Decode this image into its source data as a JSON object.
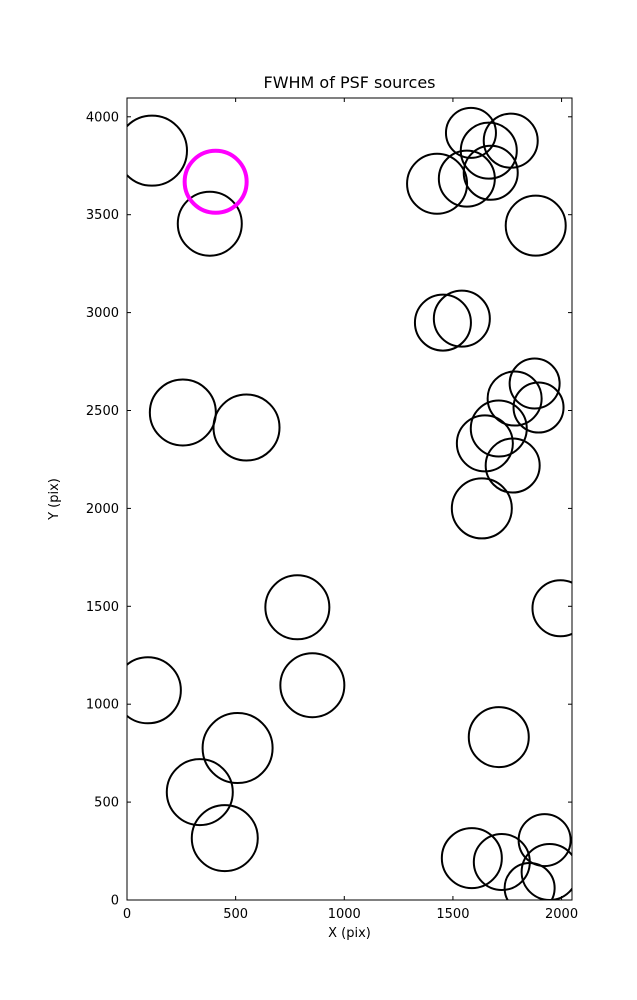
{
  "chart_data": {
    "type": "scatter",
    "title": "FWHM of PSF sources",
    "xlabel": "X (pix)",
    "ylabel": "Y (pix)",
    "xlim": [
      0,
      2048
    ],
    "ylim": [
      0,
      4096
    ],
    "xticks": [
      0,
      500,
      1000,
      1500,
      2000
    ],
    "yticks": [
      0,
      500,
      1000,
      1500,
      2000,
      2500,
      3000,
      3500,
      4000
    ],
    "grid": false,
    "legend": "none",
    "marker_style": "open-circle",
    "background_color": "#ffffff",
    "axes_color": "#000000",
    "series": [
      {
        "name": "psf-sources",
        "marker_name": "psf-source-marker",
        "color": "#000000",
        "linewidth": 2,
        "points": [
          {
            "x": 115,
            "y": 3827,
            "r": 35
          },
          {
            "x": 381,
            "y": 3454,
            "r": 32
          },
          {
            "x": 1583,
            "y": 3918,
            "r": 25
          },
          {
            "x": 1665,
            "y": 3827,
            "r": 28
          },
          {
            "x": 1766,
            "y": 3878,
            "r": 27
          },
          {
            "x": 1427,
            "y": 3658,
            "r": 30
          },
          {
            "x": 1564,
            "y": 3684,
            "r": 28
          },
          {
            "x": 1674,
            "y": 3714,
            "r": 27
          },
          {
            "x": 1881,
            "y": 3444,
            "r": 30
          },
          {
            "x": 1454,
            "y": 2949,
            "r": 28
          },
          {
            "x": 1541,
            "y": 2969,
            "r": 28
          },
          {
            "x": 1876,
            "y": 2638,
            "r": 25
          },
          {
            "x": 1784,
            "y": 2561,
            "r": 27
          },
          {
            "x": 1894,
            "y": 2515,
            "r": 25
          },
          {
            "x": 1711,
            "y": 2408,
            "r": 28
          },
          {
            "x": 1647,
            "y": 2332,
            "r": 28
          },
          {
            "x": 1775,
            "y": 2219,
            "r": 27
          },
          {
            "x": 1633,
            "y": 2000,
            "r": 30
          },
          {
            "x": 257,
            "y": 2490,
            "r": 33
          },
          {
            "x": 550,
            "y": 2413,
            "r": 33
          },
          {
            "x": 784,
            "y": 1495,
            "r": 32
          },
          {
            "x": 853,
            "y": 1097,
            "r": 32
          },
          {
            "x": 96,
            "y": 1071,
            "r": 33
          },
          {
            "x": 509,
            "y": 776,
            "r": 35
          },
          {
            "x": 335,
            "y": 551,
            "r": 33
          },
          {
            "x": 450,
            "y": 316,
            "r": 33
          },
          {
            "x": 1711,
            "y": 832,
            "r": 30
          },
          {
            "x": 1587,
            "y": 214,
            "r": 30
          },
          {
            "x": 1725,
            "y": 194,
            "r": 28
          },
          {
            "x": 1922,
            "y": 306,
            "r": 26
          },
          {
            "x": 1945,
            "y": 143,
            "r": 28
          },
          {
            "x": 1853,
            "y": 61,
            "r": 25
          },
          {
            "x": 1995,
            "y": 1490,
            "r": 28
          }
        ]
      },
      {
        "name": "highlighted-source",
        "marker_name": "highlighted-source-marker",
        "color": "#ff00ff",
        "linewidth": 4,
        "points": [
          {
            "x": 408,
            "y": 3668,
            "r": 31
          }
        ]
      }
    ]
  }
}
